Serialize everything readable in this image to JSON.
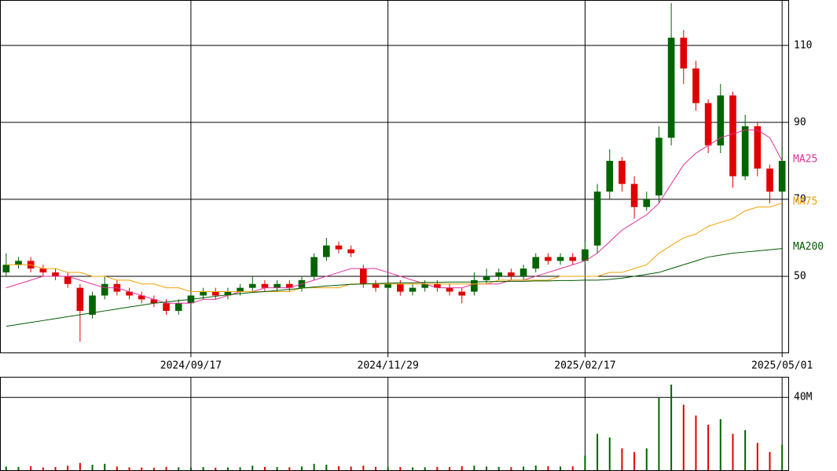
{
  "chart_data": [
    {
      "type": "candlestick",
      "open": [
        51,
        53,
        54,
        52,
        51,
        50,
        47,
        40,
        45,
        48,
        46,
        45,
        44,
        43,
        41,
        43,
        45,
        46,
        45,
        46,
        47,
        48,
        47,
        48,
        47,
        50,
        55,
        58,
        57,
        52,
        48,
        47,
        48,
        46,
        47,
        48,
        47,
        46,
        46,
        49,
        50,
        51,
        50,
        52,
        55,
        54,
        55,
        54,
        58,
        72,
        80,
        74,
        68,
        71,
        86,
        112,
        104,
        95,
        84,
        97,
        76,
        89,
        78,
        72
      ],
      "high": [
        56,
        55,
        55,
        53,
        52,
        51,
        48,
        46,
        50,
        49,
        47,
        46,
        45,
        44,
        44,
        46,
        47,
        47,
        47,
        48,
        50,
        49,
        49,
        49,
        50,
        56,
        60,
        59,
        58,
        53,
        49,
        49,
        49,
        48,
        49,
        49,
        48,
        47,
        51,
        52,
        52,
        52,
        53,
        56,
        56,
        56,
        56,
        59,
        74,
        83,
        81,
        76,
        72,
        89,
        121,
        114,
        106,
        96,
        100,
        98,
        92,
        90,
        79,
        83
      ],
      "low": [
        50,
        52,
        51,
        50,
        49,
        47,
        33,
        39,
        44,
        45,
        44,
        43,
        42,
        40,
        40,
        42,
        44,
        44,
        44,
        45,
        46,
        46,
        46,
        46,
        46,
        49,
        54,
        56,
        55,
        47,
        46,
        46,
        45,
        45,
        46,
        46,
        45,
        43,
        45,
        48,
        49,
        49,
        49,
        51,
        53,
        53,
        53,
        53,
        56,
        70,
        72,
        65,
        67,
        69,
        84,
        100,
        93,
        82,
        82,
        73,
        75,
        76,
        69,
        71
      ],
      "close": [
        53,
        54,
        52,
        51,
        50,
        48,
        41,
        45,
        48,
        46,
        45,
        44,
        43,
        41,
        43,
        45,
        46,
        45,
        46,
        47,
        48,
        47,
        48,
        47,
        49,
        55,
        58,
        57,
        56,
        48,
        47,
        48,
        46,
        47,
        48,
        47,
        46,
        45,
        49,
        50,
        51,
        50,
        52,
        55,
        54,
        55,
        54,
        57,
        72,
        80,
        74,
        68,
        70,
        86,
        112,
        104,
        95,
        84,
        97,
        76,
        89,
        78,
        72,
        80
      ],
      "up_color": "#006400",
      "down_color": "#e00000",
      "ylim": [
        30.2,
        121.8
      ],
      "yticks": [
        50,
        70,
        90,
        110
      ],
      "xticks": [
        {
          "value": 15,
          "label": "2024/09/17"
        },
        {
          "value": 31,
          "label": "2024/11/29"
        },
        {
          "value": 47,
          "label": "2025/02/17"
        },
        {
          "value": 63,
          "label": "2025/05/01"
        }
      ],
      "grid": true,
      "series": [
        {
          "name": "MA25",
          "color": "#e0309a",
          "values": [
            47,
            48,
            49,
            50,
            50,
            50,
            49,
            48,
            47,
            47,
            46,
            45,
            44,
            43,
            43,
            43,
            44,
            44,
            45,
            46,
            46,
            47,
            47,
            47,
            48,
            49,
            50,
            51,
            52,
            52,
            52,
            51,
            50,
            49,
            48,
            47,
            47,
            47,
            48,
            48,
            48,
            49,
            49,
            50,
            51,
            52,
            53,
            54,
            56,
            59,
            62,
            64,
            66,
            69,
            74,
            79,
            82,
            84,
            86,
            87,
            88,
            88,
            86,
            80
          ]
        },
        {
          "name": "MA75",
          "color": "#f0a000",
          "values": [
            53,
            53,
            53,
            52,
            52,
            51,
            51,
            50,
            50,
            49,
            49,
            48,
            48,
            47,
            47,
            46,
            46,
            46,
            46,
            46,
            46,
            46,
            46,
            46,
            47,
            47,
            47,
            47,
            48,
            48,
            48,
            48,
            48,
            48,
            48,
            48,
            48,
            48,
            48,
            48,
            49,
            49,
            49,
            49,
            49,
            50,
            50,
            50,
            50,
            51,
            51,
            52,
            53,
            56,
            58,
            60,
            61,
            63,
            64,
            65,
            67,
            68,
            68,
            69
          ]
        },
        {
          "name": "MA200",
          "color": "#005a00",
          "values": [
            37,
            37.5,
            38,
            38.5,
            39,
            39.5,
            40,
            40.5,
            41,
            41.5,
            42,
            42.5,
            43,
            43.3,
            43.7,
            44,
            44.4,
            44.8,
            45.2,
            45.5,
            45.8,
            46,
            46.3,
            46.6,
            46.9,
            47.2,
            47.5,
            47.7,
            47.9,
            48,
            48.1,
            48.2,
            48.3,
            48.3,
            48.4,
            48.4,
            48.5,
            48.5,
            48.5,
            48.6,
            48.6,
            48.7,
            48.7,
            48.8,
            48.8,
            48.9,
            48.9,
            49,
            49,
            49.2,
            49.5,
            50,
            50.5,
            51,
            52,
            53,
            54,
            55,
            55.5,
            56,
            56.3,
            56.6,
            56.9,
            57.2
          ]
        }
      ]
    },
    {
      "type": "bar",
      "values": [
        2000000,
        1800000,
        2200000,
        1500000,
        1700000,
        2500000,
        4000000,
        3000000,
        3500000,
        2000000,
        1600000,
        1500000,
        1400000,
        1800000,
        1600000,
        1500000,
        1700000,
        1400000,
        1500000,
        1600000,
        2500000,
        1800000,
        1700000,
        1600000,
        2000000,
        3500000,
        3000000,
        2200000,
        2000000,
        2500000,
        1800000,
        1600000,
        1700000,
        1500000,
        1600000,
        1800000,
        1700000,
        2200000,
        2500000,
        2000000,
        1800000,
        1700000,
        2000000,
        2600000,
        2200000,
        2000000,
        2100000,
        8000000,
        20000000,
        18000000,
        12000000,
        10000000,
        12000000,
        40000000,
        47000000,
        36000000,
        30000000,
        25000000,
        28000000,
        20000000,
        22000000,
        15000000,
        10000000,
        14000000
      ],
      "ylim": [
        0,
        51300000
      ],
      "yticks": [
        {
          "value": 40000000,
          "label": "40M"
        }
      ],
      "grid": true
    }
  ]
}
